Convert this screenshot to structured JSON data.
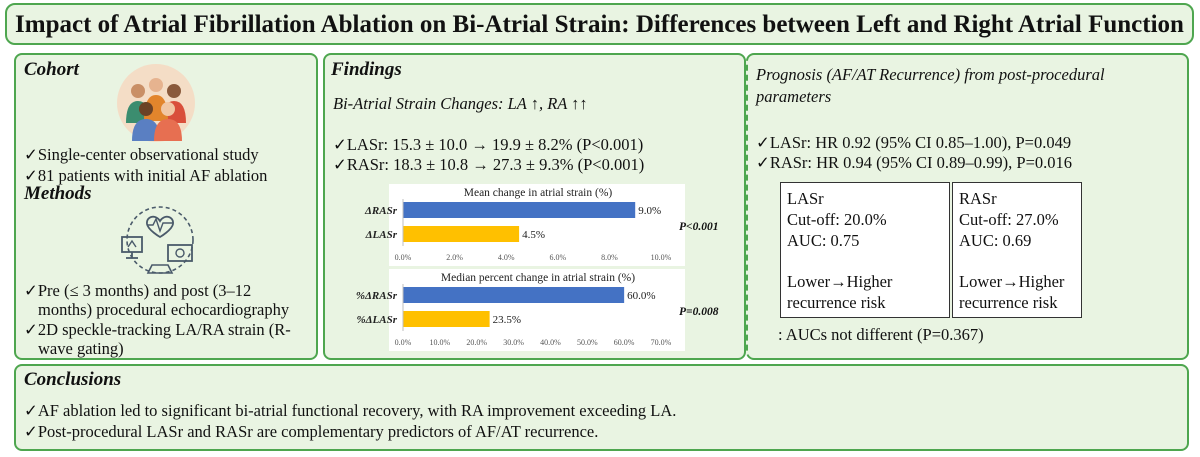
{
  "title": "Impact of Atrial Fibrillation Ablation on Bi-Atrial Strain: Differences between Left and Right Atrial Function",
  "cohort": {
    "heading": "Cohort",
    "items": [
      "✓Single-center observational study",
      "✓81 patients with initial AF ablation"
    ]
  },
  "methods": {
    "heading": "Methods",
    "items": [
      [
        "✓Pre (≤ 3 months) and post (3–12",
        "months) procedural echocardiography"
      ],
      [
        "✓2D speckle-tracking LA/RA strain (R-",
        "wave gating)"
      ]
    ]
  },
  "findings": {
    "heading": "Findings",
    "subtitle": "Bi-Atrial Strain Changes: LA ↑, RA ↑↑",
    "items": [
      "✓LASr: 15.3 ± 10.0 → 19.9 ± 8.2% (P<0.001)",
      "✓RASr: 18.3 ± 10.8 → 27.3 ± 9.3% (P<0.001)"
    ]
  },
  "prognosis": {
    "heading_lines": [
      "Prognosis (AF/AT Recurrence) from post-procedural",
      "parameters"
    ],
    "items": [
      "✓LASr: HR 0.92 (95% CI 0.85–1.00), P=0.049",
      "✓RASr: HR 0.94 (95% CI 0.89–0.99), P=0.016"
    ],
    "boxes": [
      {
        "name": "LASr",
        "cutoff": "Cut-off: 20.0%",
        "auc": "AUC: 0.75",
        "risk1": "Lower→Higher",
        "risk2": "recurrence risk"
      },
      {
        "name": "RASr",
        "cutoff": "Cut-off: 27.0%",
        "auc": "AUC: 0.69",
        "risk1": "Lower→Higher",
        "risk2": "recurrence risk"
      }
    ],
    "note": ": AUCs not different (P=0.367)"
  },
  "conclusions": {
    "heading": "Conclusions",
    "items": [
      "✓AF ablation led to significant bi-atrial functional recovery, with RA improvement exceeding LA.",
      "✓Post-procedural LASr and RASr are complementary predictors of AF/AT recurrence."
    ]
  },
  "colors": {
    "panel_bg": "#e9f4e2",
    "border": "#4ea64f",
    "ra_bar": "#4472c4",
    "la_bar": "#ffc000"
  },
  "icons": [
    "people-group-icon",
    "echocardiography-icon"
  ],
  "chart_data": [
    {
      "type": "bar",
      "orientation": "horizontal",
      "title": "Mean change in atrial strain (%)",
      "categories": [
        "ΔRASr",
        "ΔLASr"
      ],
      "values": [
        9.0,
        4.5
      ],
      "value_labels": [
        "9.0%",
        "4.5%"
      ],
      "colors": [
        "#4472c4",
        "#ffc000"
      ],
      "xlim": [
        0,
        10
      ],
      "ticks": [
        "0.0%",
        "2.0%",
        "4.0%",
        "6.0%",
        "8.0%",
        "10.0%"
      ],
      "annotation": "P<0.001"
    },
    {
      "type": "bar",
      "orientation": "horizontal",
      "title": "Median percent change in atrial strain (%)",
      "categories": [
        "%ΔRASr",
        "%ΔLASr"
      ],
      "values": [
        60.0,
        23.5
      ],
      "value_labels": [
        "60.0%",
        "23.5%"
      ],
      "colors": [
        "#4472c4",
        "#ffc000"
      ],
      "xlim": [
        0,
        70
      ],
      "ticks": [
        "0.0%",
        "10.0%",
        "20.0%",
        "30.0%",
        "40.0%",
        "50.0%",
        "60.0%",
        "70.0%"
      ],
      "annotation": "P=0.008"
    }
  ]
}
